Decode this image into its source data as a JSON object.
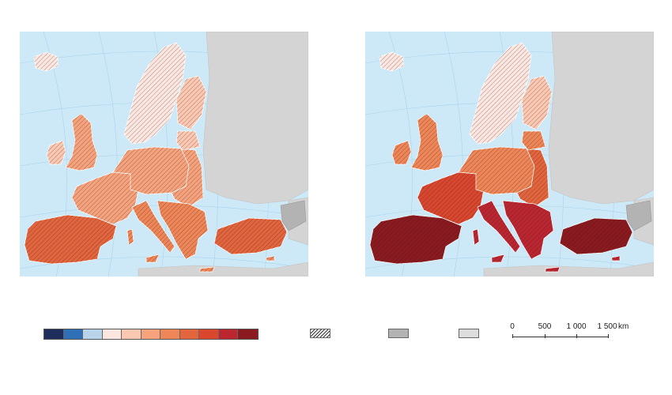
{
  "colors": {
    "sea": "#cde9f8",
    "outside_coverage": "#d4d4d4",
    "no_data": "#b3b3b3",
    "border": "#ffffff",
    "graticule": "#a9d3ec"
  },
  "legend": {
    "scale_colors": [
      "#1f2d5c",
      "#2e6fb5",
      "#b8d3ea",
      "#fde6df",
      "#fcc8b2",
      "#f6a37d",
      "#ef8658",
      "#e3653e",
      "#d9472f",
      "#bb2631",
      "#8a1a1f"
    ],
    "no_data_color": "#b3b3b3",
    "outside_coverage_color": "#dddddd"
  },
  "scalebar": {
    "ticks": [
      "0",
      "500",
      "1 000",
      "1 500"
    ],
    "unit": "km"
  },
  "maps": [
    {
      "id": "left",
      "intensity": 0.55
    },
    {
      "id": "right",
      "intensity": 1.0
    }
  ]
}
